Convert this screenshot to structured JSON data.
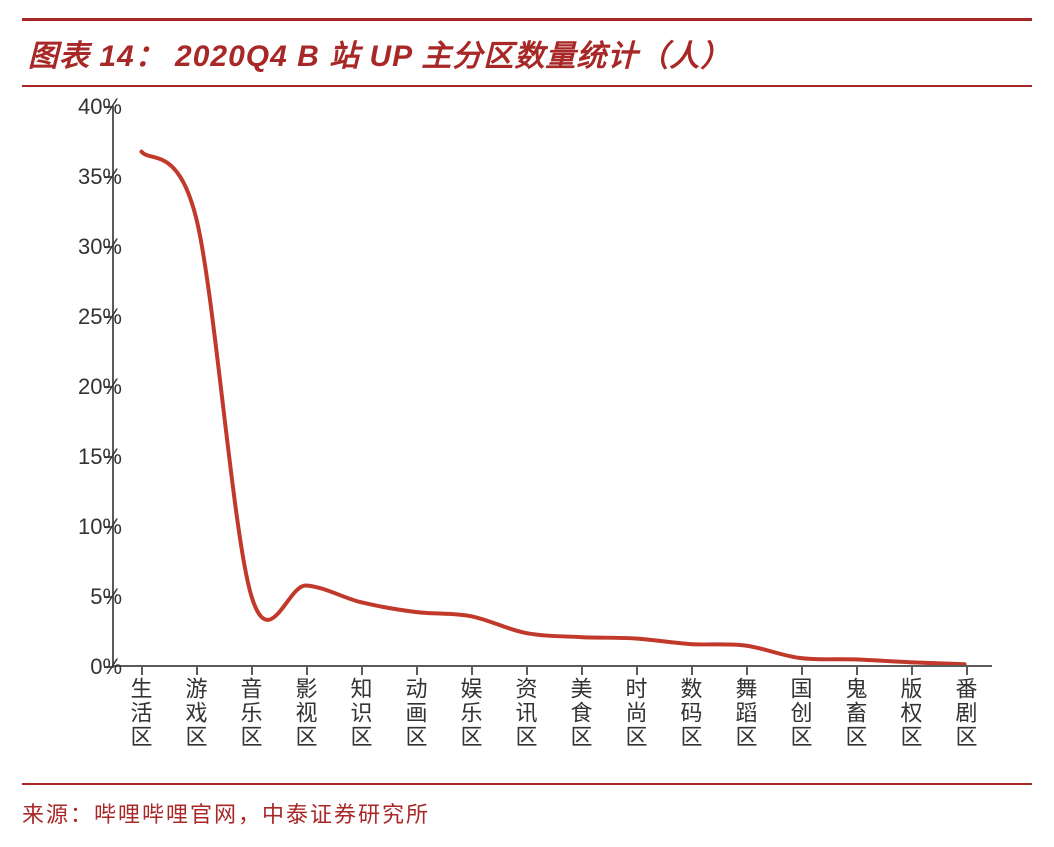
{
  "title": "图表 14：  2020Q4 B 站 UP 主分区数量统计（人）",
  "source": "来源：哔哩哔哩官网，中泰证券研究所",
  "chart": {
    "type": "line",
    "line_color": "#c0392b",
    "line_width": 4,
    "axis_color": "#5a5a5a",
    "background_color": "#ffffff",
    "ylim": [
      0,
      40
    ],
    "ytick_step": 5,
    "yticks": [
      0,
      5,
      10,
      15,
      20,
      25,
      30,
      35,
      40
    ],
    "ytick_labels": [
      "0%",
      "5%",
      "10%",
      "15%",
      "20%",
      "25%",
      "30%",
      "35%",
      "40%"
    ],
    "categories": [
      "生活区",
      "游戏区",
      "音乐区",
      "影视区",
      "知识区",
      "动画区",
      "娱乐区",
      "资讯区",
      "美食区",
      "时尚区",
      "数码区",
      "舞蹈区",
      "国创区",
      "鬼畜区",
      "版权区",
      "番剧区"
    ],
    "values": [
      36.8,
      32.0,
      5.0,
      5.7,
      4.5,
      3.8,
      3.5,
      2.3,
      2.0,
      1.9,
      1.5,
      1.4,
      0.5,
      0.4,
      0.2,
      0.05
    ],
    "label_fontsize": 22,
    "title_fontsize": 30,
    "title_color": "#a82828",
    "border_color": "#a82828"
  }
}
